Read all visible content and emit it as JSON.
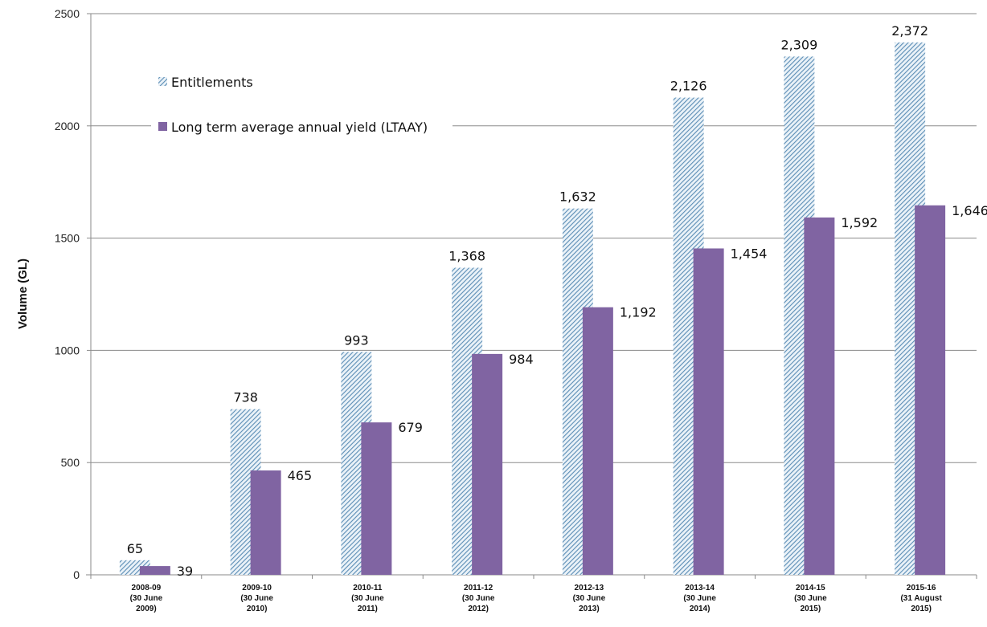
{
  "chart_data": {
    "type": "bar",
    "title": "",
    "xlabel": "",
    "ylabel": "Volume (GL)",
    "ylim": [
      0,
      2500
    ],
    "yticks": [
      "0",
      "500",
      "1000",
      "1500",
      "2000",
      "2500"
    ],
    "grid": true,
    "legend_position": "top-left",
    "categories": [
      [
        "2008-09",
        "(30 June",
        "2009)"
      ],
      [
        "2009-10",
        "(30 June",
        "2010)"
      ],
      [
        "2010-11",
        "(30 June",
        "2011)"
      ],
      [
        "2011-12",
        "(30 June",
        "2012)"
      ],
      [
        "2012-13",
        "(30 June",
        "2013)"
      ],
      [
        "2013-14",
        "(30 June",
        "2014)"
      ],
      [
        "2014-15",
        "(30 June",
        "2015)"
      ],
      [
        "2015-16",
        "(31 August",
        "2015)"
      ]
    ],
    "series": [
      {
        "name": "Entitlements",
        "color": "#8eb4cf",
        "pattern": "diagonal-hatch",
        "values": [
          65,
          738,
          993,
          1368,
          1632,
          2126,
          2309,
          2372
        ],
        "labels": [
          "65",
          "738",
          "993",
          "1,368",
          "1,632",
          "2,126",
          "2,309",
          "2,372"
        ]
      },
      {
        "name": "Long term average annual yield (LTAAY)",
        "color": "#8064a2",
        "pattern": "solid",
        "values": [
          39,
          465,
          679,
          984,
          1192,
          1454,
          1592,
          1646
        ],
        "labels": [
          "39",
          "465",
          "679",
          "984",
          "1,192",
          "1,454",
          "1,592",
          "1,646"
        ]
      }
    ]
  }
}
